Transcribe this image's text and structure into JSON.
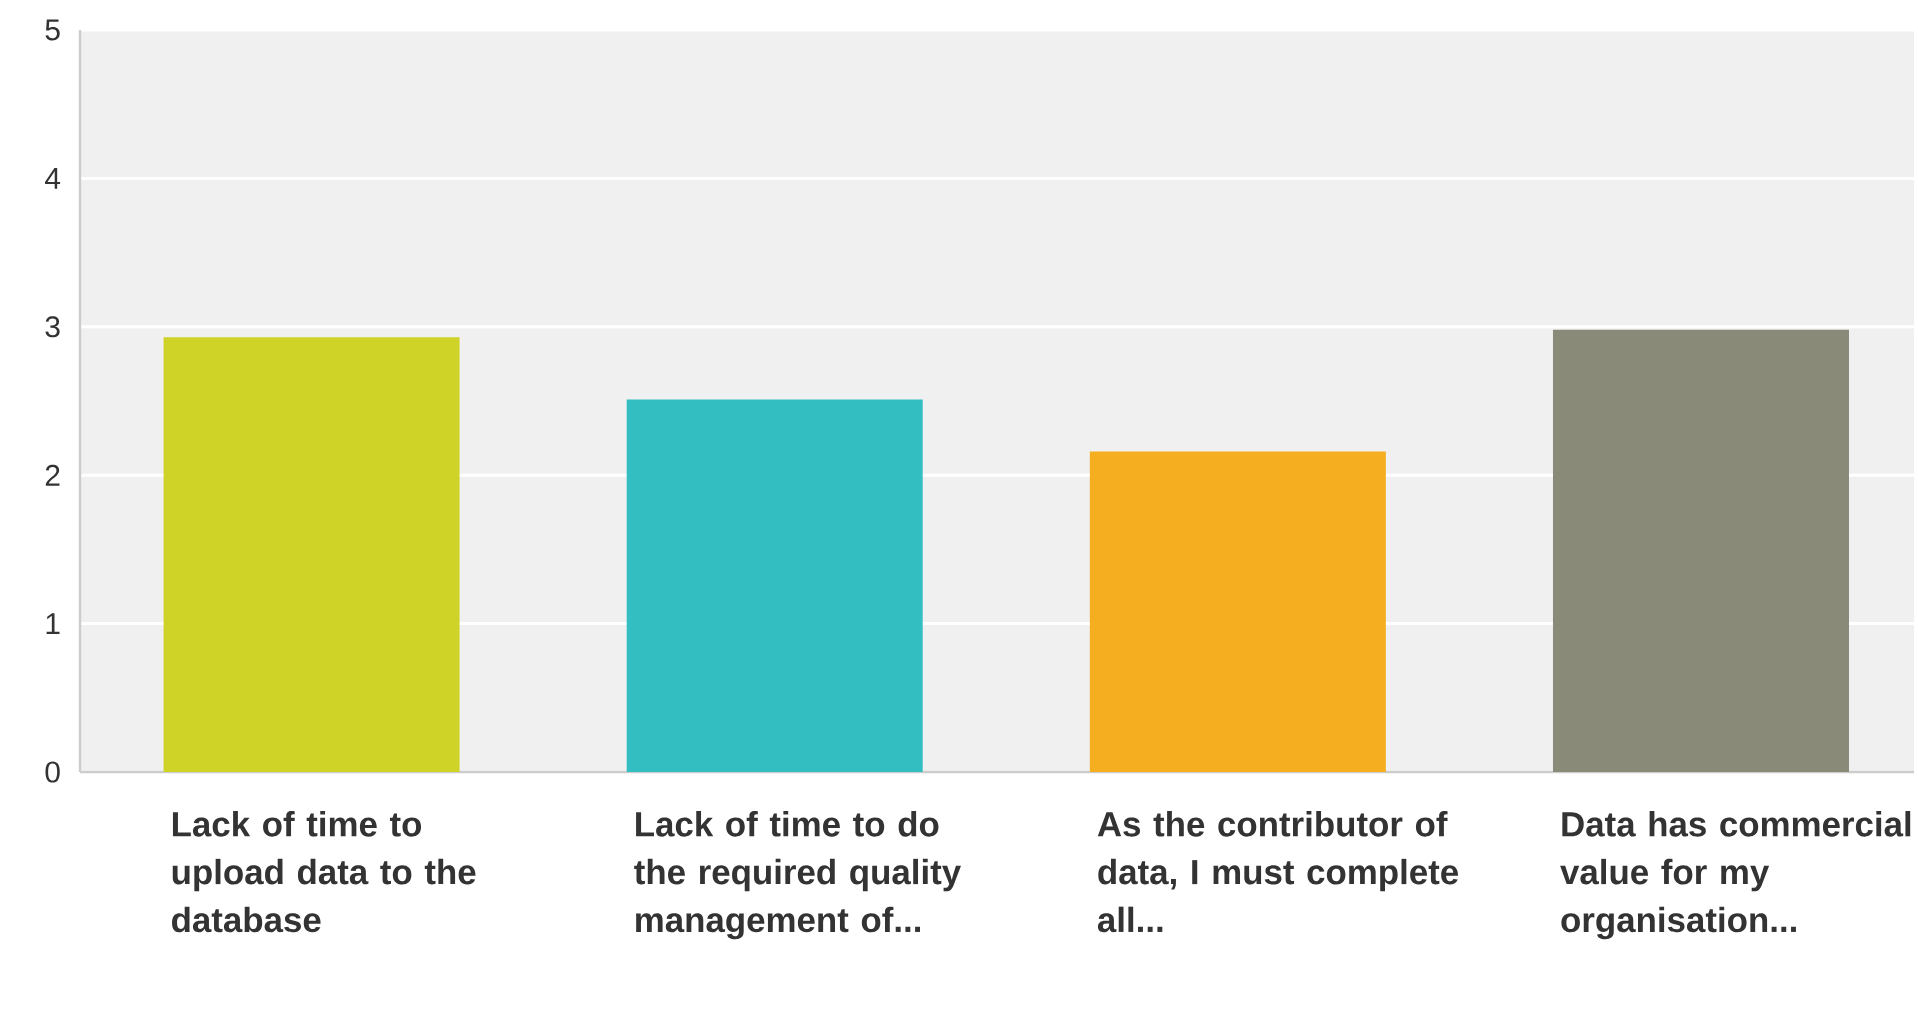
{
  "chart_data": {
    "type": "bar",
    "categories": [
      "Lack of time to upload data to the database",
      "Lack of time to do the required quality management of...",
      "As the contributor of data, I must complete all...",
      "Data has commercial value for my organisation..."
    ],
    "values": [
      2.93,
      2.51,
      2.16,
      2.98
    ],
    "colors": [
      "#d0d327",
      "#33bfc1",
      "#f5ae1f",
      "#8a8a79"
    ],
    "ylim": [
      0,
      5
    ],
    "yticks": [
      0,
      1,
      2,
      3,
      4,
      5
    ],
    "grid": "y"
  }
}
